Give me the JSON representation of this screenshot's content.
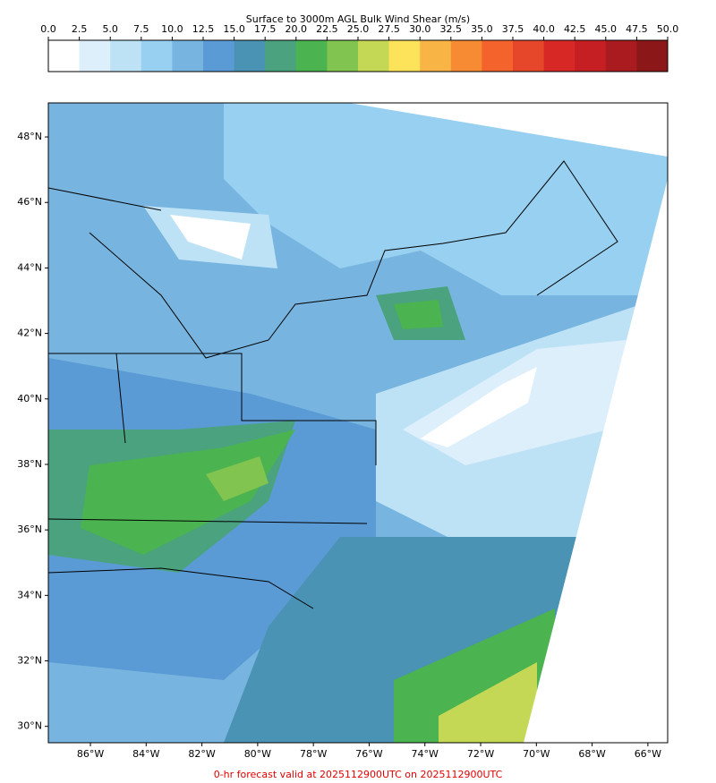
{
  "colorbar": {
    "title": "Surface to 3000m AGL Bulk Wind Shear (m/s)",
    "lim": [
      0,
      50
    ],
    "ticks": [
      {
        "value": 0,
        "label": "0.0"
      },
      2.5,
      {
        "value": 5,
        "label": "5.0"
      },
      7.5,
      {
        "value": 10,
        "label": "10.0"
      },
      12.5,
      {
        "value": 15,
        "label": "15.0"
      },
      17.5,
      {
        "value": 20,
        "label": "20.0"
      },
      22.5,
      {
        "value": 25,
        "label": "25.0"
      },
      27.5,
      {
        "value": 30,
        "label": "30.0"
      },
      32.5,
      {
        "value": 35,
        "label": "35.0"
      },
      37.5,
      {
        "value": 40,
        "label": "40.0"
      },
      42.5,
      {
        "value": 45,
        "label": "45.0"
      },
      47.5,
      {
        "value": 50,
        "label": "50.0"
      }
    ],
    "colors": [
      "#ffffff",
      "#ddeffb",
      "#bde2f6",
      "#97d0f0",
      "#77b5e0",
      "#5b9bd5",
      "#4a93b5",
      "#4aa37e",
      "#4bb34f",
      "#82c450",
      "#c5d856",
      "#fce35a",
      "#f9b446",
      "#f78b34",
      "#f4632b",
      "#e64629",
      "#d82826",
      "#c51f23",
      "#a91b1f",
      "#8b1718"
    ]
  },
  "map": {
    "xlim": [
      -87.51,
      -65.29
    ],
    "ylim": [
      29.5,
      49.04
    ],
    "xticks": [
      {
        "value": -86,
        "label": "86°W"
      },
      {
        "value": -84,
        "label": "84°W"
      },
      {
        "value": -82,
        "label": "82°W"
      },
      {
        "value": -80,
        "label": "80°W"
      },
      {
        "value": -78,
        "label": "78°W"
      },
      {
        "value": -76,
        "label": "76°W"
      },
      {
        "value": -74,
        "label": "74°W"
      },
      {
        "value": -72,
        "label": "72°W"
      },
      {
        "value": -70,
        "label": "70°W"
      },
      {
        "value": -68,
        "label": "68°W"
      },
      {
        "value": -66,
        "label": "66°W"
      }
    ],
    "yticks": [
      {
        "value": 30,
        "label": "30°N"
      },
      {
        "value": 32,
        "label": "32°N"
      },
      {
        "value": 34,
        "label": "34°N"
      },
      {
        "value": 36,
        "label": "36°N"
      },
      {
        "value": 38,
        "label": "38°N"
      },
      {
        "value": 40,
        "label": "40°N"
      },
      {
        "value": 42,
        "label": "42°N"
      },
      {
        "value": 44,
        "label": "44°N"
      },
      {
        "value": 46,
        "label": "46°N"
      },
      {
        "value": 48,
        "label": "48°N"
      }
    ]
  },
  "footer": "0-hr forecast valid at 2025112900UTC on 2025112900UTC"
}
